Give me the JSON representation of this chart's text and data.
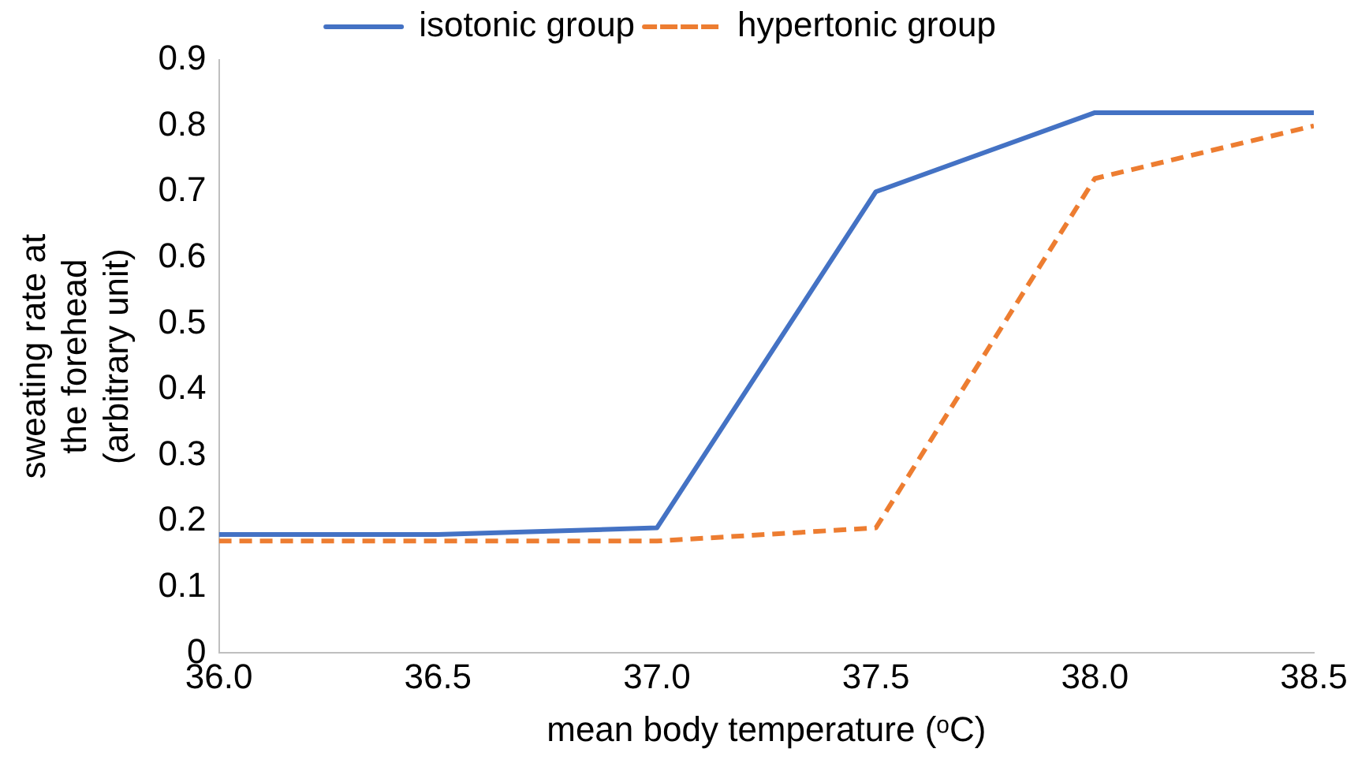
{
  "chart_data": {
    "type": "line",
    "xlabel": "mean body temperature (ᵒC)",
    "ylabel": "sweating rate at\nthe forehead\n(arbitrary unit)",
    "x": [
      36.0,
      36.5,
      37.0,
      37.5,
      38.0,
      38.5
    ],
    "series": [
      {
        "name": "isotonic group",
        "color": "#4472c4",
        "line_style": "solid",
        "values": [
          0.18,
          0.18,
          0.19,
          0.7,
          0.82,
          0.82
        ]
      },
      {
        "name": "hypertonic group",
        "color": "#ed7d31",
        "line_style": "dashed",
        "values": [
          0.17,
          0.17,
          0.17,
          0.19,
          0.72,
          0.8
        ]
      }
    ],
    "xlim": [
      36.0,
      38.5
    ],
    "xticks": [
      {
        "value": 36.0,
        "label": "36.0"
      },
      {
        "value": 36.5,
        "label": "36.5"
      },
      {
        "value": 37.0,
        "label": "37.0"
      },
      {
        "value": 37.5,
        "label": "37.5"
      },
      {
        "value": 38.0,
        "label": "38.0"
      },
      {
        "value": 38.5,
        "label": "38.5"
      }
    ],
    "ylim": [
      0,
      0.9
    ],
    "yticks": [
      0,
      0.1,
      0.2,
      0.3,
      0.4,
      0.5,
      0.6,
      0.7,
      0.8,
      0.9
    ],
    "grid": false,
    "legend": "top",
    "marker": "none"
  }
}
